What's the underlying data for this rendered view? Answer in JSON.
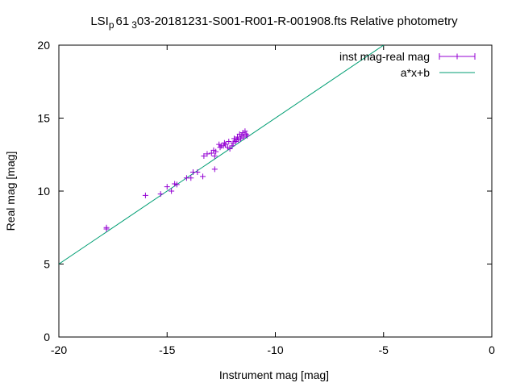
{
  "chart_data": {
    "type": "scatter",
    "title_parts": {
      "a": "LSI",
      "b": "p",
      "c": "61",
      "d": "3",
      "e": "03-20181231-S001-R001-R-001908.fts Relative photometry"
    },
    "xlabel": "Instrument mag [mag]",
    "ylabel": "Real mag [mag]",
    "xlim": [
      -20,
      0
    ],
    "ylim": [
      0,
      20
    ],
    "xticks": [
      -20,
      -15,
      -10,
      -5,
      0
    ],
    "yticks": [
      0,
      5,
      10,
      15,
      20
    ],
    "xtick_labels": [
      "-20",
      "-15",
      "-10",
      "-5",
      "0"
    ],
    "ytick_labels": [
      "0",
      "5",
      "10",
      "15",
      "20"
    ],
    "grid": false,
    "legend_position": "top-right",
    "series": [
      {
        "name": "inst mag-real mag",
        "type": "points",
        "color": "#9400d3",
        "points": [
          [
            -17.8,
            7.5
          ],
          [
            -17.8,
            7.4
          ],
          [
            -16.0,
            9.7
          ],
          [
            -15.3,
            9.8
          ],
          [
            -15.0,
            10.3
          ],
          [
            -14.8,
            10.0
          ],
          [
            -14.65,
            10.5
          ],
          [
            -14.55,
            10.45
          ],
          [
            -14.1,
            10.9
          ],
          [
            -13.9,
            10.9
          ],
          [
            -13.8,
            11.3
          ],
          [
            -13.6,
            11.3
          ],
          [
            -13.35,
            11.0
          ],
          [
            -13.3,
            12.4
          ],
          [
            -13.15,
            12.55
          ],
          [
            -12.95,
            12.6
          ],
          [
            -12.8,
            12.4
          ],
          [
            -12.85,
            12.8
          ],
          [
            -12.75,
            12.7
          ],
          [
            -12.8,
            11.5
          ],
          [
            -12.6,
            13.2
          ],
          [
            -12.55,
            13.0
          ],
          [
            -12.5,
            13.1
          ],
          [
            -12.4,
            13.1
          ],
          [
            -12.35,
            13.3
          ],
          [
            -12.3,
            13.2
          ],
          [
            -12.2,
            13.0
          ],
          [
            -12.15,
            13.4
          ],
          [
            -12.1,
            12.9
          ],
          [
            -12.0,
            13.1
          ],
          [
            -11.95,
            13.3
          ],
          [
            -11.9,
            13.6
          ],
          [
            -11.85,
            13.4
          ],
          [
            -11.8,
            13.5
          ],
          [
            -11.75,
            13.7
          ],
          [
            -11.7,
            13.5
          ],
          [
            -11.65,
            13.9
          ],
          [
            -11.6,
            13.6
          ],
          [
            -11.55,
            13.8
          ],
          [
            -11.5,
            14.0
          ],
          [
            -11.45,
            13.7
          ],
          [
            -11.4,
            14.1
          ],
          [
            -11.35,
            13.9
          ],
          [
            -11.3,
            13.8
          ]
        ]
      },
      {
        "name": "a*x+b",
        "type": "line",
        "color": "#009e73",
        "a": 1.0,
        "b": 25.0
      }
    ]
  }
}
